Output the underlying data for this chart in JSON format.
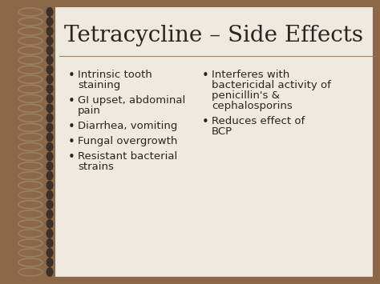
{
  "title": "Tetracycline – Side Effects",
  "title_fontsize": 20,
  "title_color": "#2b2420",
  "bg_color": "#eeeae0",
  "border_color": "#8B6847",
  "spiral_dot_color": "#3a3028",
  "spiral_wire_color": "#9a8060",
  "left_bullet_items": [
    "Intrinsic tooth\nstaining",
    "GI upset, abdominal\npain",
    "Diarrhea, vomiting",
    "Fungal overgrowth",
    "Resistant bacterial\nstrains"
  ],
  "right_bullet_items": [
    "Interferes with\nbactericidal activity of\npenicillin's &\ncephalosporins",
    "Reduces effect of\nBCP"
  ],
  "bullet_fontsize": 9.5,
  "bullet_color": "#2b2420",
  "divider_color": "#a08060"
}
